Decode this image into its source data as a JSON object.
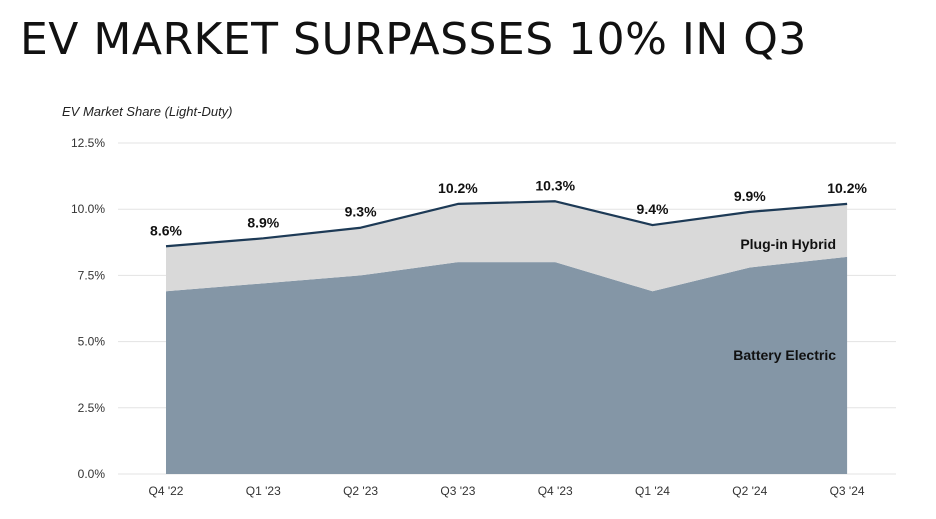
{
  "header": {
    "title": "EV MARKET SURPASSES 10% IN Q3",
    "subtitle": "EV Market Share (Light-Duty)"
  },
  "chart_data": {
    "type": "area",
    "title": "EV MARKET SURPASSES 10% IN Q3",
    "ylabel": "EV Market Share (Light-Duty)",
    "xlabel": "",
    "categories": [
      "Q4 '22",
      "Q1 '23",
      "Q2 '23",
      "Q3 '23",
      "Q4 '23",
      "Q1 '24",
      "Q2 '24",
      "Q3 '24"
    ],
    "ylim": [
      0,
      12.5
    ],
    "yticks": [
      0,
      2.5,
      5.0,
      7.5,
      10.0,
      12.5
    ],
    "ytick_labels": [
      "0.0%",
      "2.5%",
      "5.0%",
      "7.5%",
      "10.0%",
      "12.5%"
    ],
    "grid": true,
    "stacked": true,
    "series": [
      {
        "name": "Battery Electric",
        "values": [
          6.9,
          7.2,
          7.5,
          8.0,
          8.0,
          6.9,
          7.8,
          8.2
        ],
        "color": "#8496a6"
      },
      {
        "name": "Plug-in Hybrid",
        "values": [
          1.7,
          1.7,
          1.8,
          2.2,
          2.3,
          2.5,
          2.1,
          2.0
        ],
        "color": "#d9d9d9"
      }
    ],
    "total": {
      "values": [
        8.6,
        8.9,
        9.3,
        10.2,
        10.3,
        9.4,
        9.9,
        10.2
      ],
      "labels": [
        "8.6%",
        "8.9%",
        "9.3%",
        "10.2%",
        "10.3%",
        "9.4%",
        "9.9%",
        "10.2%"
      ],
      "line_color": "#1d3a56"
    }
  }
}
